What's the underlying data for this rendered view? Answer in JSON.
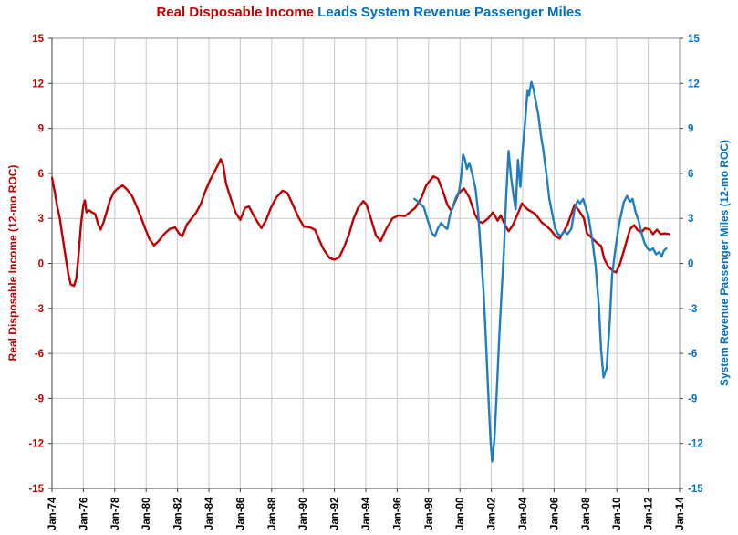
{
  "chart_data": {
    "type": "line",
    "title": {
      "red_part": "Real Disposable Income",
      "blue_part": " Leads System Revenue Passenger Miles"
    },
    "x_axis": {
      "tick_labels": [
        "Jan-74",
        "Jan-76",
        "Jan-78",
        "Jan-80",
        "Jan-82",
        "Jan-84",
        "Jan-86",
        "Jan-88",
        "Jan-90",
        "Jan-92",
        "Jan-94",
        "Jan-96",
        "Jan-98",
        "Jan-00",
        "Jan-02",
        "Jan-04",
        "Jan-06",
        "Jan-08",
        "Jan-10",
        "Jan-12",
        "Jan-14"
      ],
      "tick_years": [
        1974,
        1976,
        1978,
        1980,
        1982,
        1984,
        1986,
        1988,
        1990,
        1992,
        1994,
        1996,
        1998,
        2000,
        2002,
        2004,
        2006,
        2008,
        2010,
        2012,
        2014
      ],
      "range": [
        1974,
        2014
      ]
    },
    "y_left": {
      "title": "Real Disposable Income (12-mo ROC)",
      "ticks": [
        15,
        12,
        9,
        6,
        3,
        0,
        -3,
        -6,
        -9,
        -12,
        -15
      ],
      "range": [
        -15,
        15
      ],
      "color": "#C00000"
    },
    "y_right": {
      "title": "System Revenue Passenger Miles (12-mo ROC)",
      "ticks": [
        15,
        12,
        9,
        6,
        3,
        0,
        -3,
        -6,
        -9,
        -12,
        -15
      ],
      "range": [
        -15,
        15
      ],
      "color": "#0070C0"
    },
    "grid": true,
    "legend": "none",
    "colors": {
      "red_line": "#C00000",
      "blue_line": "#1F7DC2",
      "gridline": "#C9C9C9",
      "plot_border": "#8C8C8C",
      "axis_line": "#3F3F3F"
    },
    "series": [
      {
        "name": "Real Disposable Income",
        "axis": "left",
        "color": "#C00000",
        "points": [
          [
            1974.0,
            5.7
          ],
          [
            1974.17,
            4.8
          ],
          [
            1974.33,
            3.8
          ],
          [
            1974.5,
            3.0
          ],
          [
            1974.7,
            1.6
          ],
          [
            1974.9,
            0.2
          ],
          [
            1975.05,
            -0.8
          ],
          [
            1975.2,
            -1.4
          ],
          [
            1975.4,
            -1.5
          ],
          [
            1975.55,
            -1.0
          ],
          [
            1975.7,
            0.6
          ],
          [
            1975.85,
            2.6
          ],
          [
            1976.0,
            3.9
          ],
          [
            1976.1,
            4.2
          ],
          [
            1976.2,
            3.4
          ],
          [
            1976.35,
            3.55
          ],
          [
            1976.55,
            3.4
          ],
          [
            1976.75,
            3.3
          ],
          [
            1976.95,
            2.6
          ],
          [
            1977.1,
            2.25
          ],
          [
            1977.3,
            2.8
          ],
          [
            1977.5,
            3.5
          ],
          [
            1977.7,
            4.2
          ],
          [
            1977.95,
            4.75
          ],
          [
            1978.2,
            5.0
          ],
          [
            1978.5,
            5.2
          ],
          [
            1978.8,
            4.9
          ],
          [
            1979.1,
            4.5
          ],
          [
            1979.4,
            3.8
          ],
          [
            1979.7,
            3.0
          ],
          [
            1979.95,
            2.3
          ],
          [
            1980.2,
            1.65
          ],
          [
            1980.5,
            1.2
          ],
          [
            1980.8,
            1.5
          ],
          [
            1981.1,
            1.9
          ],
          [
            1981.5,
            2.3
          ],
          [
            1981.85,
            2.4
          ],
          [
            1982.1,
            2.0
          ],
          [
            1982.3,
            1.8
          ],
          [
            1982.6,
            2.6
          ],
          [
            1982.9,
            3.0
          ],
          [
            1983.2,
            3.4
          ],
          [
            1983.5,
            4.0
          ],
          [
            1983.75,
            4.75
          ],
          [
            1984.05,
            5.5
          ],
          [
            1984.35,
            6.1
          ],
          [
            1984.6,
            6.6
          ],
          [
            1984.75,
            6.95
          ],
          [
            1984.9,
            6.6
          ],
          [
            1985.1,
            5.3
          ],
          [
            1985.4,
            4.3
          ],
          [
            1985.7,
            3.4
          ],
          [
            1986.0,
            2.9
          ],
          [
            1986.3,
            3.7
          ],
          [
            1986.55,
            3.8
          ],
          [
            1986.8,
            3.3
          ],
          [
            1987.05,
            2.85
          ],
          [
            1987.35,
            2.35
          ],
          [
            1987.65,
            2.9
          ],
          [
            1987.95,
            3.7
          ],
          [
            1988.3,
            4.4
          ],
          [
            1988.7,
            4.85
          ],
          [
            1989.0,
            4.7
          ],
          [
            1989.4,
            3.8
          ],
          [
            1989.7,
            3.1
          ],
          [
            1990.05,
            2.45
          ],
          [
            1990.45,
            2.4
          ],
          [
            1990.75,
            2.25
          ],
          [
            1991.0,
            1.65
          ],
          [
            1991.3,
            0.95
          ],
          [
            1991.7,
            0.35
          ],
          [
            1992.0,
            0.25
          ],
          [
            1992.3,
            0.4
          ],
          [
            1992.6,
            1.05
          ],
          [
            1992.9,
            1.85
          ],
          [
            1993.2,
            2.9
          ],
          [
            1993.5,
            3.7
          ],
          [
            1993.85,
            4.15
          ],
          [
            1994.05,
            3.9
          ],
          [
            1994.35,
            2.9
          ],
          [
            1994.65,
            1.85
          ],
          [
            1994.95,
            1.5
          ],
          [
            1995.3,
            2.3
          ],
          [
            1995.7,
            3.0
          ],
          [
            1996.1,
            3.2
          ],
          [
            1996.5,
            3.15
          ],
          [
            1996.85,
            3.45
          ],
          [
            1997.15,
            3.7
          ],
          [
            1997.55,
            4.4
          ],
          [
            1997.85,
            5.2
          ],
          [
            1998.3,
            5.8
          ],
          [
            1998.6,
            5.65
          ],
          [
            1998.9,
            4.85
          ],
          [
            1999.2,
            3.9
          ],
          [
            1999.45,
            3.5
          ],
          [
            1999.9,
            4.65
          ],
          [
            2000.25,
            5.0
          ],
          [
            2000.6,
            4.4
          ],
          [
            2000.95,
            3.3
          ],
          [
            2001.2,
            2.8
          ],
          [
            2001.45,
            2.7
          ],
          [
            2001.8,
            3.0
          ],
          [
            2002.1,
            3.4
          ],
          [
            2002.4,
            2.85
          ],
          [
            2002.6,
            3.2
          ],
          [
            2002.8,
            2.7
          ],
          [
            2003.1,
            2.15
          ],
          [
            2003.35,
            2.5
          ],
          [
            2003.6,
            3.1
          ],
          [
            2003.8,
            3.6
          ],
          [
            2003.95,
            4.0
          ],
          [
            2004.3,
            3.6
          ],
          [
            2004.8,
            3.3
          ],
          [
            2005.2,
            2.75
          ],
          [
            2005.5,
            2.5
          ],
          [
            2005.8,
            2.2
          ],
          [
            2006.1,
            1.8
          ],
          [
            2006.35,
            1.65
          ],
          [
            2006.6,
            2.1
          ],
          [
            2006.85,
            2.55
          ],
          [
            2007.1,
            3.3
          ],
          [
            2007.3,
            3.9
          ],
          [
            2007.6,
            3.5
          ],
          [
            2007.9,
            3.0
          ],
          [
            2008.1,
            2.0
          ],
          [
            2008.4,
            1.7
          ],
          [
            2008.7,
            1.4
          ],
          [
            2009.0,
            1.15
          ],
          [
            2009.2,
            0.3
          ],
          [
            2009.45,
            -0.2
          ],
          [
            2009.75,
            -0.5
          ],
          [
            2009.95,
            -0.6
          ],
          [
            2010.2,
            -0.05
          ],
          [
            2010.45,
            0.85
          ],
          [
            2010.65,
            1.6
          ],
          [
            2010.85,
            2.3
          ],
          [
            2011.1,
            2.55
          ],
          [
            2011.3,
            2.25
          ],
          [
            2011.55,
            2.05
          ],
          [
            2011.8,
            2.35
          ],
          [
            2012.1,
            2.25
          ],
          [
            2012.3,
            1.95
          ],
          [
            2012.55,
            2.25
          ],
          [
            2012.8,
            1.95
          ],
          [
            2013.05,
            2.0
          ],
          [
            2013.35,
            1.95
          ]
        ]
      },
      {
        "name": "System Revenue Passenger Miles",
        "axis": "right",
        "color": "#1F7DC2",
        "points": [
          [
            1997.1,
            4.3
          ],
          [
            1997.4,
            4.05
          ],
          [
            1997.7,
            3.75
          ],
          [
            1998.0,
            2.7
          ],
          [
            1998.2,
            2.05
          ],
          [
            1998.4,
            1.8
          ],
          [
            1998.6,
            2.35
          ],
          [
            1998.8,
            2.7
          ],
          [
            1999.05,
            2.4
          ],
          [
            1999.2,
            2.3
          ],
          [
            1999.35,
            3.15
          ],
          [
            1999.55,
            3.8
          ],
          [
            1999.75,
            4.4
          ],
          [
            1999.95,
            4.8
          ],
          [
            2000.1,
            6.0
          ],
          [
            2000.2,
            7.25
          ],
          [
            2000.3,
            7.0
          ],
          [
            2000.45,
            6.3
          ],
          [
            2000.6,
            6.7
          ],
          [
            2000.8,
            5.9
          ],
          [
            2001.0,
            4.9
          ],
          [
            2001.15,
            3.5
          ],
          [
            2001.3,
            1.2
          ],
          [
            2001.5,
            -1.8
          ],
          [
            2001.65,
            -5.0
          ],
          [
            2001.8,
            -8.6
          ],
          [
            2001.95,
            -11.8
          ],
          [
            2002.05,
            -13.2
          ],
          [
            2002.2,
            -11.7
          ],
          [
            2002.35,
            -8.5
          ],
          [
            2002.5,
            -5.0
          ],
          [
            2002.65,
            -2.0
          ],
          [
            2002.8,
            0.8
          ],
          [
            2002.95,
            4.5
          ],
          [
            2003.1,
            7.5
          ],
          [
            2003.25,
            5.8
          ],
          [
            2003.4,
            4.6
          ],
          [
            2003.55,
            3.6
          ],
          [
            2003.7,
            6.9
          ],
          [
            2003.85,
            5.1
          ],
          [
            2004.0,
            7.6
          ],
          [
            2004.15,
            9.4
          ],
          [
            2004.3,
            11.5
          ],
          [
            2004.4,
            11.2
          ],
          [
            2004.55,
            12.1
          ],
          [
            2004.7,
            11.6
          ],
          [
            2004.85,
            10.7
          ],
          [
            2005.0,
            9.9
          ],
          [
            2005.15,
            8.6
          ],
          [
            2005.3,
            7.65
          ],
          [
            2005.5,
            6.05
          ],
          [
            2005.7,
            4.3
          ],
          [
            2005.85,
            3.5
          ],
          [
            2006.05,
            2.4
          ],
          [
            2006.25,
            1.95
          ],
          [
            2006.45,
            1.85
          ],
          [
            2006.65,
            2.15
          ],
          [
            2006.85,
            1.95
          ],
          [
            2007.1,
            2.3
          ],
          [
            2007.3,
            3.6
          ],
          [
            2007.5,
            4.2
          ],
          [
            2007.65,
            4.0
          ],
          [
            2007.85,
            4.3
          ],
          [
            2008.05,
            3.6
          ],
          [
            2008.2,
            3.1
          ],
          [
            2008.45,
            1.45
          ],
          [
            2008.65,
            -0.2
          ],
          [
            2008.85,
            -2.8
          ],
          [
            2009.0,
            -5.8
          ],
          [
            2009.15,
            -7.6
          ],
          [
            2009.35,
            -7.0
          ],
          [
            2009.55,
            -3.8
          ],
          [
            2009.7,
            -0.8
          ],
          [
            2009.9,
            0.9
          ],
          [
            2010.05,
            2.0
          ],
          [
            2010.2,
            2.9
          ],
          [
            2010.45,
            4.1
          ],
          [
            2010.65,
            4.5
          ],
          [
            2010.85,
            4.1
          ],
          [
            2011.0,
            4.3
          ],
          [
            2011.2,
            3.4
          ],
          [
            2011.4,
            2.8
          ],
          [
            2011.55,
            2.1
          ],
          [
            2011.75,
            1.4
          ],
          [
            2011.95,
            1.0
          ],
          [
            2012.1,
            0.85
          ],
          [
            2012.3,
            1.0
          ],
          [
            2012.5,
            0.6
          ],
          [
            2012.7,
            0.75
          ],
          [
            2012.85,
            0.45
          ],
          [
            2013.0,
            0.85
          ],
          [
            2013.15,
            1.0
          ]
        ]
      }
    ]
  }
}
